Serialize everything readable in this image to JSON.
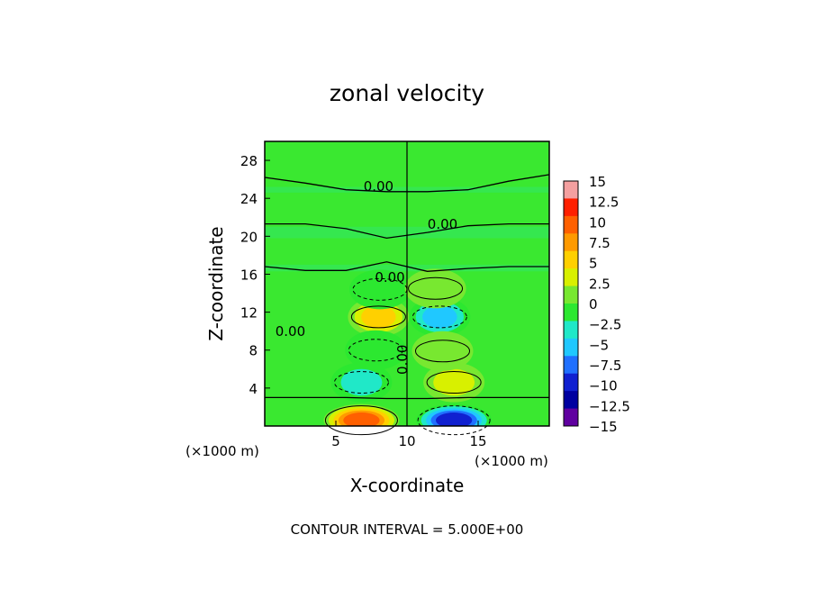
{
  "chart_data": {
    "type": "heatmap",
    "title": "zonal velocity",
    "xlabel": "X-coordinate",
    "ylabel": "Z-coordinate",
    "x_unit_label_left": "(×1000 m)",
    "x_unit_label_right": "(×1000 m)",
    "xlim": [
      0,
      20
    ],
    "ylim": [
      0,
      30
    ],
    "x_ticks": [
      5,
      10,
      15
    ],
    "y_ticks": [
      4,
      8,
      12,
      16,
      20,
      24,
      28
    ],
    "contour_interval_text": "CONTOUR INTERVAL = 5.000E+00",
    "contour_labels": [
      {
        "text": "0.00",
        "x": 8.0,
        "z": 24.8
      },
      {
        "text": "0.00",
        "x": 12.5,
        "z": 20.8
      },
      {
        "text": "0.00",
        "x": 8.8,
        "z": 15.2
      },
      {
        "text": "0.00",
        "x": 1.8,
        "z": 9.5
      },
      {
        "text": "0.00",
        "x": 10.0,
        "z": 7.0
      }
    ],
    "features": [
      {
        "kind": "max",
        "x": 6.8,
        "z": 0.6,
        "value": 13
      },
      {
        "kind": "min",
        "x": 13.3,
        "z": 0.6,
        "value": -13
      },
      {
        "kind": "max",
        "x": 8.0,
        "z": 11.5,
        "value": 8
      },
      {
        "kind": "min",
        "x": 12.3,
        "z": 11.5,
        "value": -8
      },
      {
        "kind": "min",
        "x": 6.8,
        "z": 4.6,
        "value": -6
      },
      {
        "kind": "max",
        "x": 13.3,
        "z": 4.6,
        "value": 6
      },
      {
        "kind": "min",
        "x": 7.8,
        "z": 8.0,
        "value": -4
      },
      {
        "kind": "max",
        "x": 12.5,
        "z": 7.9,
        "value": 4
      },
      {
        "kind": "min",
        "x": 8.1,
        "z": 14.4,
        "value": -3
      },
      {
        "kind": "max",
        "x": 12.0,
        "z": 14.5,
        "value": 3
      }
    ],
    "colorbar": {
      "labels": [
        "15",
        "12.5",
        "10",
        "7.5",
        "5",
        "2.5",
        "0",
        "−2.5",
        "−5",
        "−7.5",
        "−10",
        "−12.5",
        "−15"
      ],
      "values": [
        15,
        12.5,
        10,
        7.5,
        5,
        2.5,
        0,
        -2.5,
        -5,
        -7.5,
        -10,
        -12.5,
        -15
      ],
      "colors": [
        "#f4a0a0",
        "#ff2000",
        "#ff6000",
        "#ff9a00",
        "#ffd000",
        "#d8f000",
        "#78e830",
        "#2ce830",
        "#20e8c8",
        "#20c8ff",
        "#2070ff",
        "#1020d0",
        "#0000a0",
        "#6000a0"
      ]
    }
  }
}
